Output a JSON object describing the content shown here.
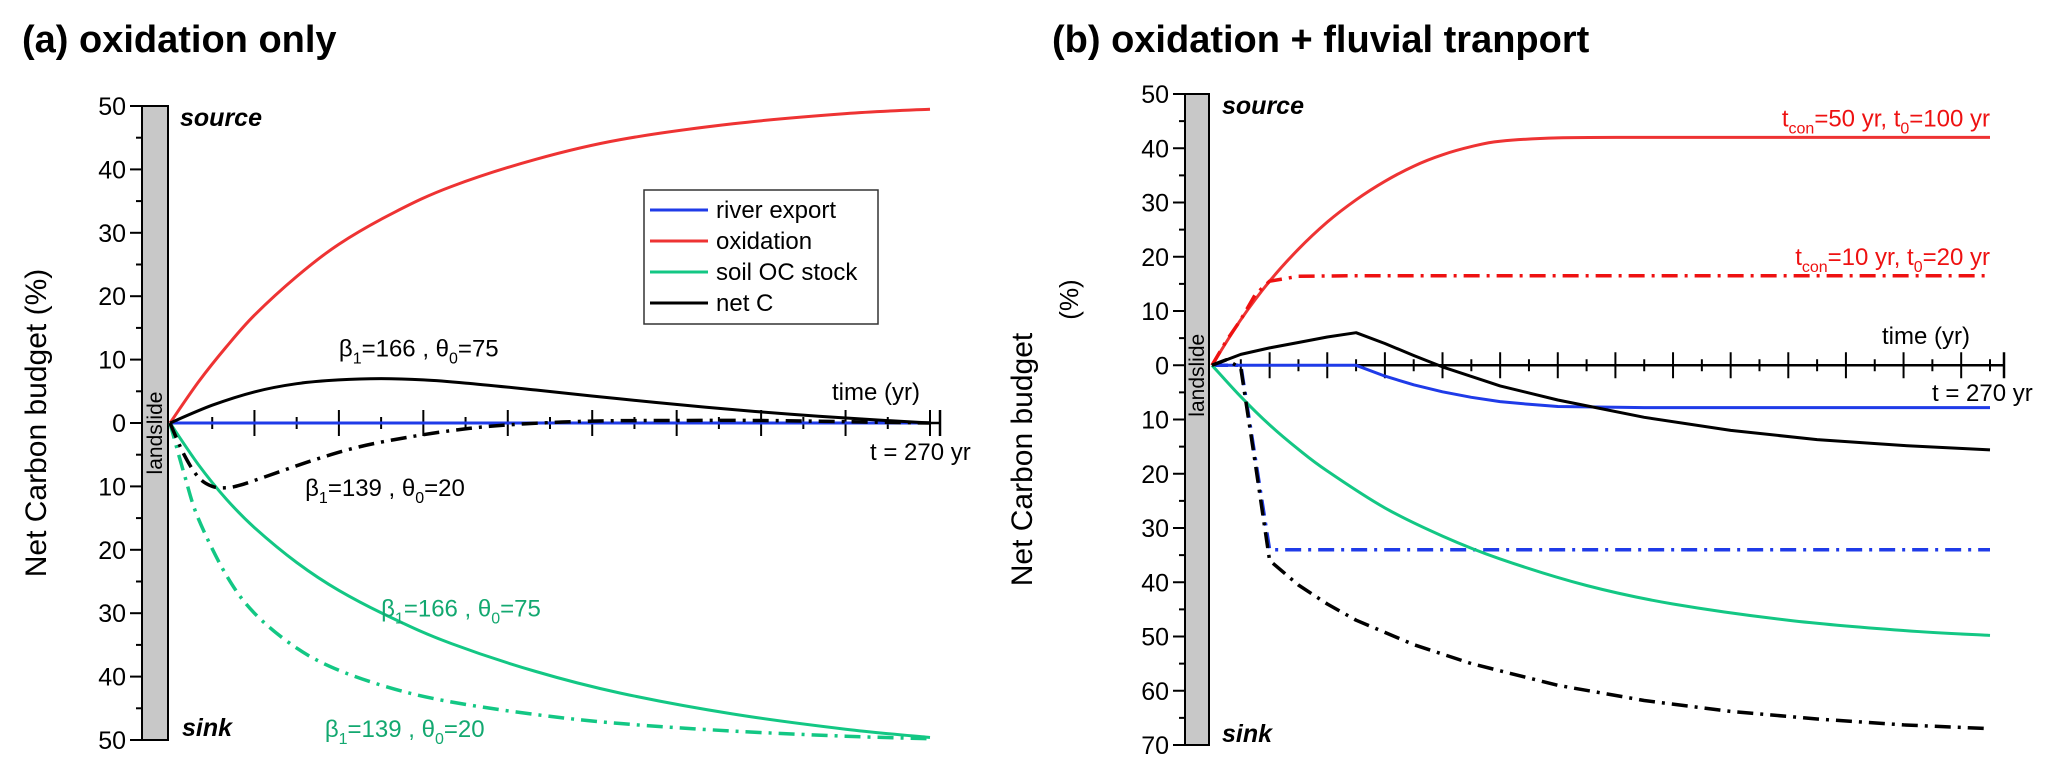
{
  "chart_data": [
    {
      "type": "line",
      "panel": "a",
      "title": "(a) oxidation only",
      "ylabel": "Net Carbon budget (%)",
      "xlabel": "time (yr)",
      "x_end_label": "t = 270 yr",
      "xlim": [
        0,
        270
      ],
      "ylim": [
        -50,
        50
      ],
      "y_ticks": [
        50,
        40,
        30,
        20,
        10,
        0,
        -10,
        -20,
        -30,
        -40,
        -50
      ],
      "y_tick_labels": [
        "50",
        "40",
        "30",
        "20",
        "10",
        "0",
        "10",
        "20",
        "30",
        "40",
        "50"
      ],
      "x_tick_step": 15,
      "source_label": "source",
      "sink_label": "sink",
      "bar_label": "landslide",
      "legend": {
        "placement": "upper-right",
        "entries": [
          {
            "label": "river export",
            "color": "#1f3be8"
          },
          {
            "label": "oxidation",
            "color": "#ee3333"
          },
          {
            "label": "soil OC stock",
            "color": "#13c784"
          },
          {
            "label": "net C",
            "color": "#000000"
          }
        ]
      },
      "annotations": [
        {
          "base": "β",
          "sub1": "1",
          "mid": "=166 , θ",
          "sub2": "0",
          "end": "=75",
          "color": "#000000",
          "at": [
            60,
            10.5
          ]
        },
        {
          "base": "β",
          "sub1": "1",
          "mid": "=139 , θ",
          "sub2": "0",
          "end": "=20",
          "color": "#000000",
          "at": [
            48,
            -11.5
          ]
        },
        {
          "base": "β",
          "sub1": "1",
          "mid": "=166 , θ",
          "sub2": "0",
          "end": "=75",
          "color": "#13a870",
          "at": [
            75,
            -30.5
          ]
        },
        {
          "base": "β",
          "sub1": "1",
          "mid": "=139 , θ",
          "sub2": "0",
          "end": "=20",
          "color": "#13a870",
          "at": [
            55,
            -49.5
          ]
        }
      ],
      "series": [
        {
          "name": "river export",
          "style": "solid",
          "color": "#1f3be8",
          "x": [
            0,
            270
          ],
          "y": [
            0,
            0
          ]
        },
        {
          "name": "oxidation",
          "style": "solid",
          "color": "#ee3333",
          "x": [
            0,
            10,
            20,
            30,
            45,
            60,
            80,
            100,
            130,
            160,
            200,
            240,
            270
          ],
          "y": [
            0,
            6.4,
            12.0,
            17.0,
            23.1,
            28.2,
            33.3,
            37.3,
            41.6,
            44.7,
            47.2,
            48.8,
            49.5
          ]
        },
        {
          "name": "soil OC stock (β1=166, θ0=75)",
          "style": "solid",
          "color": "#13c784",
          "x": [
            0,
            10,
            20,
            30,
            45,
            60,
            80,
            100,
            130,
            160,
            200,
            240,
            270
          ],
          "y": [
            0,
            -6.5,
            -12.0,
            -16.5,
            -22.0,
            -26.4,
            -31.0,
            -34.8,
            -39.2,
            -42.6,
            -45.9,
            -48.3,
            -49.6
          ]
        },
        {
          "name": "soil OC stock (β1=139, θ0=20)",
          "style": "dashdot",
          "color": "#13c784",
          "x": [
            0,
            5,
            10,
            20,
            30,
            45,
            60,
            80,
            100,
            130,
            160,
            200,
            240,
            270
          ],
          "y": [
            0,
            -8.0,
            -15.0,
            -24.0,
            -30.0,
            -35.5,
            -39.0,
            -42.0,
            -44.0,
            -46.0,
            -47.4,
            -48.6,
            -49.4,
            -49.8
          ]
        },
        {
          "name": "net C (β1=166, θ0=75)",
          "style": "solid",
          "color": "#000000",
          "x": [
            0,
            15,
            30,
            45,
            60,
            75,
            90,
            105,
            130,
            160,
            190,
            220,
            250,
            270
          ],
          "y": [
            0,
            2.8,
            4.9,
            6.2,
            6.8,
            7.0,
            6.8,
            6.3,
            5.2,
            3.8,
            2.5,
            1.4,
            0.5,
            0
          ]
        },
        {
          "name": "net C (β1=139, θ0=20)",
          "style": "dashdot",
          "color": "#000000",
          "x": [
            0,
            5,
            10,
            15,
            20,
            25,
            35,
            50,
            65,
            80,
            100,
            120,
            150,
            180,
            210,
            240,
            270
          ],
          "y": [
            0,
            -5.0,
            -8.5,
            -10.0,
            -10.2,
            -9.8,
            -8.3,
            -6.0,
            -4.0,
            -2.6,
            -1.2,
            -0.3,
            0.3,
            0.4,
            0.4,
            0.2,
            0
          ]
        }
      ]
    },
    {
      "type": "line",
      "panel": "b",
      "title": "(b) oxidation + fluvial tranport",
      "ylabel": "Net Carbon budget",
      "ylabel_unit": "(%)",
      "xlabel": "time (yr)",
      "x_end_label": "t = 270 yr",
      "xlim": [
        0,
        270
      ],
      "ylim": [
        -70,
        50
      ],
      "y_ticks": [
        50,
        40,
        30,
        20,
        10,
        0,
        -10,
        -20,
        -30,
        -40,
        -50,
        -60,
        -70
      ],
      "y_tick_labels": [
        "50",
        "40",
        "30",
        "20",
        "10",
        "0",
        "10",
        "20",
        "30",
        "40",
        "50",
        "60",
        "70"
      ],
      "x_tick_step": 10,
      "source_label": "source",
      "sink_label": "sink",
      "bar_label": "landslide",
      "annotations": [
        {
          "base": "t",
          "sub1": "con",
          "mid": "=50 yr, t",
          "sub2": "0",
          "end": "=100 yr",
          "color": "#ee1111",
          "at": [
            270,
            44
          ]
        },
        {
          "base": "t",
          "sub1": "con",
          "mid": "=10 yr, t",
          "sub2": "0",
          "end": "=20 yr",
          "color": "#ee1111",
          "at": [
            270,
            18.5
          ]
        }
      ],
      "series": [
        {
          "name": "oxidation (tcon=50 yr, t0=100 yr)",
          "style": "solid",
          "color": "#ee3333",
          "x": [
            0,
            10,
            20,
            30,
            40,
            50,
            60,
            70,
            80,
            90,
            100,
            120,
            150,
            200,
            270
          ],
          "y": [
            0,
            8.4,
            15.5,
            21.4,
            26.4,
            30.5,
            33.9,
            36.7,
            38.8,
            40.3,
            41.3,
            41.9,
            42.0,
            42.0,
            42.0
          ]
        },
        {
          "name": "oxidation (tcon=10 yr, t0=20 yr)",
          "style": "dashdot",
          "color": "#ee1111",
          "x": [
            0,
            5,
            10,
            15,
            20,
            30,
            50,
            270
          ],
          "y": [
            0,
            4.5,
            8.4,
            13.0,
            15.5,
            16.4,
            16.5,
            16.5
          ]
        },
        {
          "name": "river export (tcon=50 yr, t0=100 yr)",
          "style": "solid",
          "color": "#1f3be8",
          "x": [
            0,
            50,
            60,
            70,
            80,
            90,
            100,
            110,
            120,
            150,
            270
          ],
          "y": [
            0,
            0,
            -2.0,
            -3.6,
            -4.9,
            -5.9,
            -6.7,
            -7.2,
            -7.6,
            -7.8,
            -7.8
          ]
        },
        {
          "name": "river export (tcon=10 yr, t0=20 yr)",
          "style": "dashdot",
          "color": "#1f3be8",
          "x": [
            0,
            10,
            20,
            270
          ],
          "y": [
            0,
            0,
            -34,
            -34
          ]
        },
        {
          "name": "soil OC stock",
          "style": "solid",
          "color": "#13c784",
          "x": [
            0,
            10,
            20,
            30,
            40,
            60,
            80,
            100,
            130,
            160,
            200,
            240,
            270
          ],
          "y": [
            0,
            -5.8,
            -11.0,
            -15.5,
            -19.5,
            -26.3,
            -31.5,
            -35.7,
            -40.6,
            -44.0,
            -47.0,
            -48.9,
            -49.8
          ]
        },
        {
          "name": "net C (tcon=50 yr, t0=100 yr)",
          "style": "solid",
          "color": "#000000",
          "x": [
            0,
            10,
            20,
            30,
            40,
            50,
            60,
            70,
            80,
            100,
            120,
            150,
            180,
            210,
            240,
            270
          ],
          "y": [
            0,
            2.0,
            3.2,
            4.2,
            5.2,
            6.0,
            4.0,
            1.8,
            -0.3,
            -3.8,
            -6.4,
            -9.6,
            -12.0,
            -13.7,
            -14.8,
            -15.6
          ]
        },
        {
          "name": "net C (tcon=10 yr, t0=20 yr)",
          "style": "dashdot",
          "color": "#000000",
          "x": [
            0,
            5,
            10,
            15,
            20,
            30,
            40,
            50,
            70,
            90,
            120,
            150,
            180,
            210,
            240,
            270
          ],
          "y": [
            0,
            1.0,
            -0.5,
            -18,
            -36.0,
            -40.5,
            -44.0,
            -47.0,
            -51.5,
            -55.0,
            -59.0,
            -61.8,
            -63.8,
            -65.2,
            -66.3,
            -67.0
          ]
        }
      ]
    }
  ]
}
